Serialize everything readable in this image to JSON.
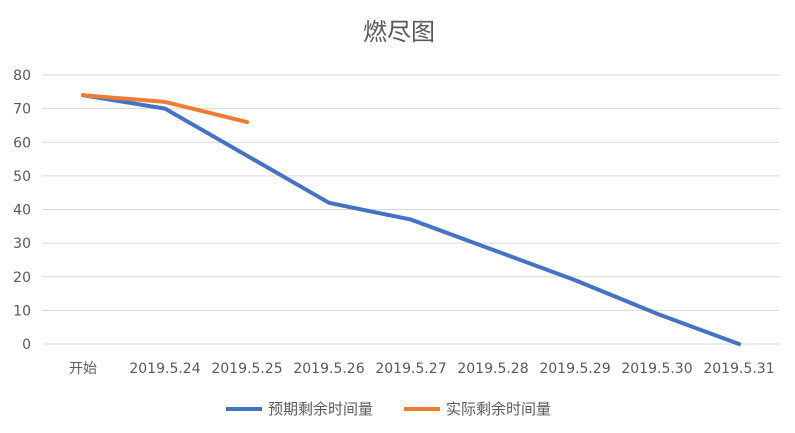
{
  "chart_data": {
    "type": "line",
    "title": "燃尽图",
    "xlabel": "",
    "ylabel": "",
    "categories": [
      "开始",
      "2019.5.24",
      "2019.5.25",
      "2019.5.26",
      "2019.5.27",
      "2019.5.28",
      "2019.5.29",
      "2019.5.30",
      "2019.5.31"
    ],
    "ylim": [
      0,
      80
    ],
    "yticks": [
      0,
      10,
      20,
      30,
      40,
      50,
      60,
      70,
      80
    ],
    "grid": true,
    "legend_position": "bottom",
    "series": [
      {
        "name": "预期剩余时间量",
        "color": "#4472C4",
        "values": [
          74,
          70,
          56,
          42,
          37,
          28,
          19,
          9,
          0
        ]
      },
      {
        "name": "实际剩余时间量",
        "color": "#ED7D31",
        "values": [
          74,
          72,
          66,
          null,
          null,
          null,
          null,
          null,
          null
        ]
      }
    ]
  }
}
